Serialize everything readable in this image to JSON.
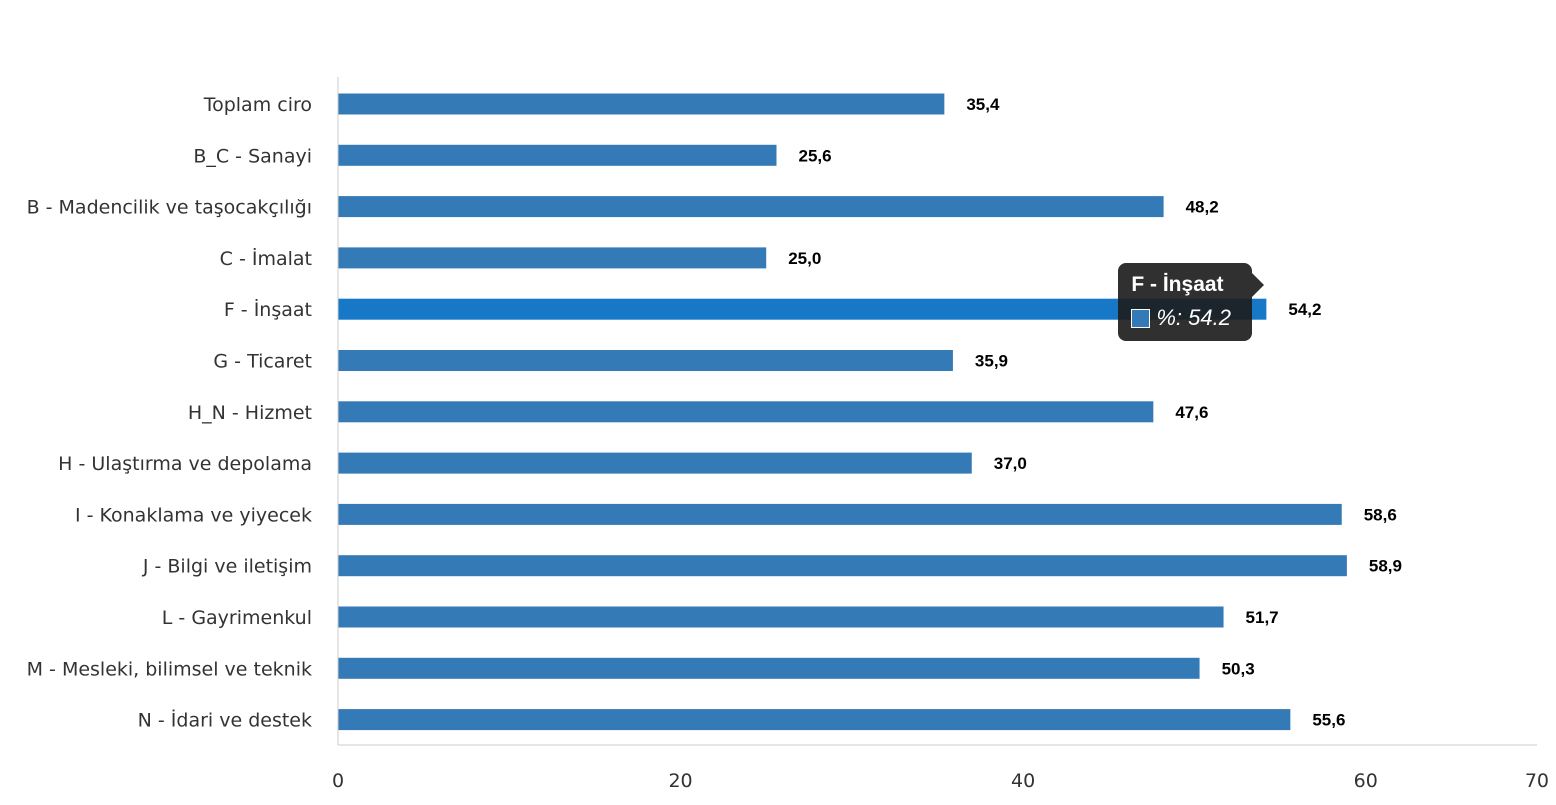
{
  "chart_data": {
    "type": "bar",
    "orientation": "horizontal",
    "categories": [
      "Toplam ciro",
      "B_C - Sanayi",
      "B - Madencilik ve taşocakçılığı",
      "C - İmalat",
      "F - İnşaat",
      "G - Ticaret",
      "H_N - Hizmet",
      "H - Ulaştırma ve depolama",
      "I - Konaklama ve yiyecek",
      "J - Bilgi ve iletişim",
      "L - Gayrimenkul",
      "M - Mesleki, bilimsel ve teknik",
      "N - İdari ve destek"
    ],
    "values": [
      35.4,
      25.6,
      48.2,
      25.0,
      54.2,
      35.9,
      47.6,
      37.0,
      58.6,
      58.9,
      51.7,
      50.3,
      55.6
    ],
    "value_labels": [
      "35,4",
      "25,6",
      "48,2",
      "25,0",
      "54,2",
      "35,9",
      "47,6",
      "37,0",
      "58,6",
      "58,9",
      "51,7",
      "50,3",
      "55,6"
    ],
    "xlim": [
      0,
      70
    ],
    "xticks": [
      "0",
      "20",
      "40",
      "60",
      "70"
    ],
    "xtick_values": [
      0,
      20,
      40,
      60,
      70
    ],
    "grid": false,
    "colors": {
      "bar": "#337ab7",
      "bar_highlight": "#1878c8",
      "axis": "#cccccc"
    },
    "highlighted_index": 4
  },
  "tooltip": {
    "title": "F - İnşaat",
    "text": "%: 54.2",
    "swatch_color": "#337ab7"
  }
}
